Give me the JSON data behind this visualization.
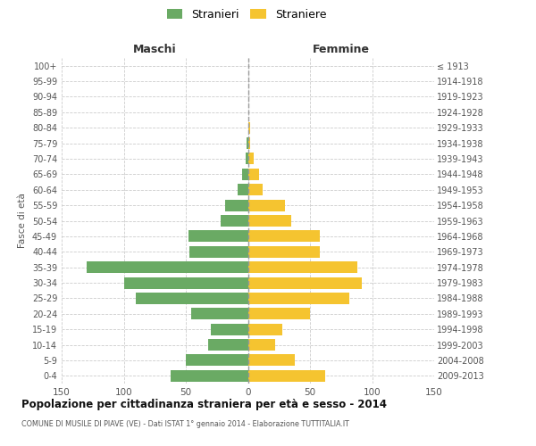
{
  "age_groups": [
    "100+",
    "95-99",
    "90-94",
    "85-89",
    "80-84",
    "75-79",
    "70-74",
    "65-69",
    "60-64",
    "55-59",
    "50-54",
    "45-49",
    "40-44",
    "35-39",
    "30-34",
    "25-29",
    "20-24",
    "15-19",
    "10-14",
    "5-9",
    "0-4"
  ],
  "birth_years": [
    "≤ 1913",
    "1914-1918",
    "1919-1923",
    "1924-1928",
    "1929-1933",
    "1934-1938",
    "1939-1943",
    "1944-1948",
    "1949-1953",
    "1954-1958",
    "1959-1963",
    "1964-1968",
    "1969-1973",
    "1974-1978",
    "1979-1983",
    "1984-1988",
    "1989-1993",
    "1994-1998",
    "1999-2003",
    "2004-2008",
    "2009-2013"
  ],
  "maschi": [
    0,
    0,
    0,
    0,
    0,
    1,
    2,
    5,
    8,
    18,
    22,
    48,
    47,
    130,
    100,
    90,
    46,
    30,
    32,
    50,
    62
  ],
  "femmine": [
    0,
    0,
    0,
    0,
    2,
    2,
    5,
    9,
    12,
    30,
    35,
    58,
    58,
    88,
    92,
    82,
    50,
    28,
    22,
    38,
    62
  ],
  "color_maschi": "#6aaa64",
  "color_femmine": "#f5c430",
  "title": "Popolazione per cittadinanza straniera per età e sesso - 2014",
  "subtitle": "COMUNE DI MUSILE DI PIAVE (VE) - Dati ISTAT 1° gennaio 2014 - Elaborazione TUTTITALIA.IT",
  "label_maschi": "Maschi",
  "label_femmine": "Femmine",
  "ylabel_left": "Fasce di età",
  "legend_maschi": "Stranieri",
  "legend_femmine": "Straniere",
  "xlim": 150,
  "background_color": "#ffffff",
  "grid_color": "#cccccc"
}
